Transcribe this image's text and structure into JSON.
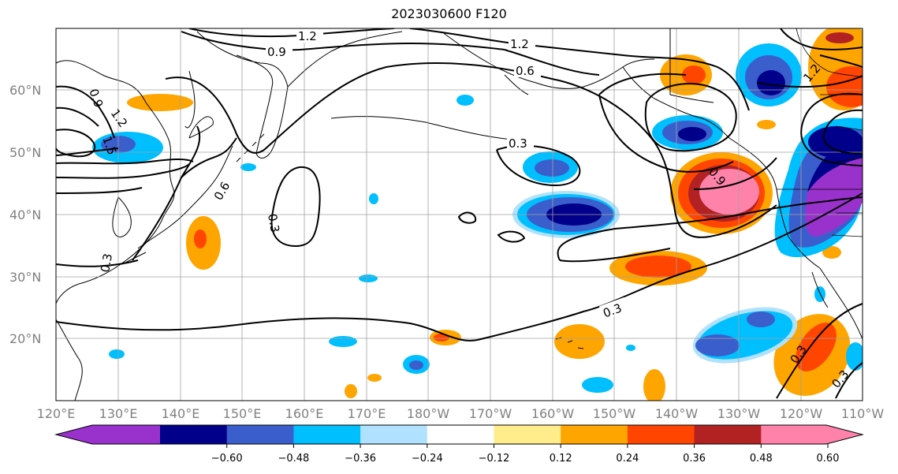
{
  "title": "2023030600 F120",
  "map": {
    "region": "North Pacific",
    "lat_labels": [
      "60°N",
      "50°N",
      "40°N",
      "30°N",
      "20°N"
    ],
    "lon_labels": [
      "120°E",
      "130°E",
      "140°E",
      "150°E",
      "160°E",
      "170°E",
      "180°W",
      "170°W",
      "160°W",
      "150°W",
      "140°W",
      "130°W",
      "120°W",
      "110°W"
    ]
  },
  "colorbar": {
    "ticks": [
      "−0.60",
      "−0.48",
      "−0.36",
      "−0.24",
      "−0.12",
      "0.12",
      "0.24",
      "0.36",
      "0.48",
      "0.60"
    ],
    "colors": [
      "#9932cc",
      "#00008b",
      "#3a5fcd",
      "#00bfff",
      "#b0e2ff",
      "#ffffff",
      "#ffec8b",
      "#ffa500",
      "#ff4500",
      "#b22222",
      "#ff82ab"
    ]
  },
  "contour_labels": [
    "1.2",
    "0.9",
    "1.2",
    "0.6",
    "0.9",
    "1.2",
    "1.5",
    "0.3",
    "0.9",
    "0.6",
    "0.3",
    "0.3",
    "0.3",
    "0.3",
    "0.3",
    "1.2"
  ]
}
